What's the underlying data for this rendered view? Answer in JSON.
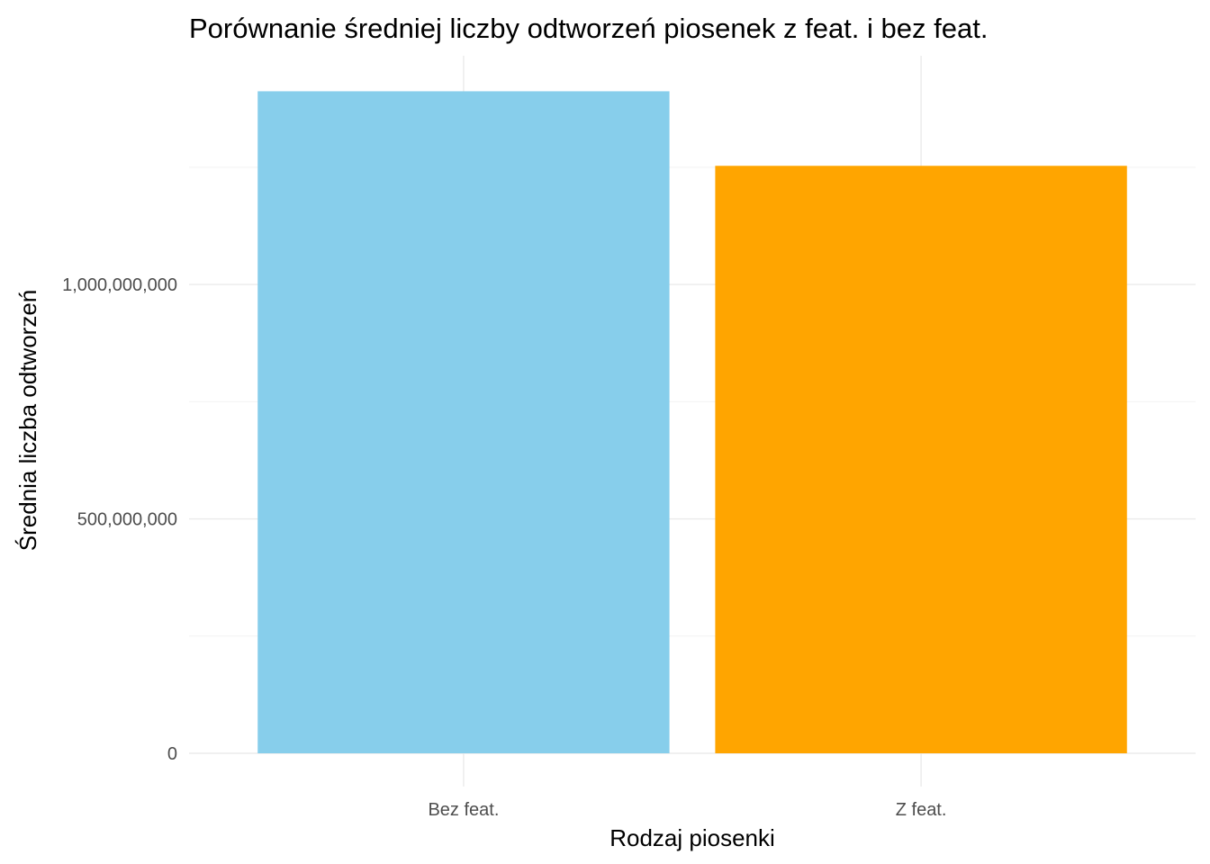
{
  "chart_data": {
    "type": "bar",
    "title": "Porównanie średniej liczby odtworzeń piosenek z feat. i bez feat.",
    "xlabel": "Rodzaj piosenki",
    "ylabel": "Średnia liczba odtworzeń",
    "categories": [
      "Bez feat.",
      "Z feat."
    ],
    "values": [
      1412000000,
      1253000000
    ],
    "colors": [
      "#87CEEB",
      "#FFA500"
    ],
    "ylim": [
      0,
      1480000000
    ],
    "yticks": [
      0,
      500000000,
      1000000000
    ],
    "ytick_labels": [
      "0",
      "500,000,000",
      "1,000,000,000"
    ],
    "minor_yticks": [
      250000000,
      750000000,
      1250000000
    ],
    "grid": true,
    "legend": "none"
  }
}
